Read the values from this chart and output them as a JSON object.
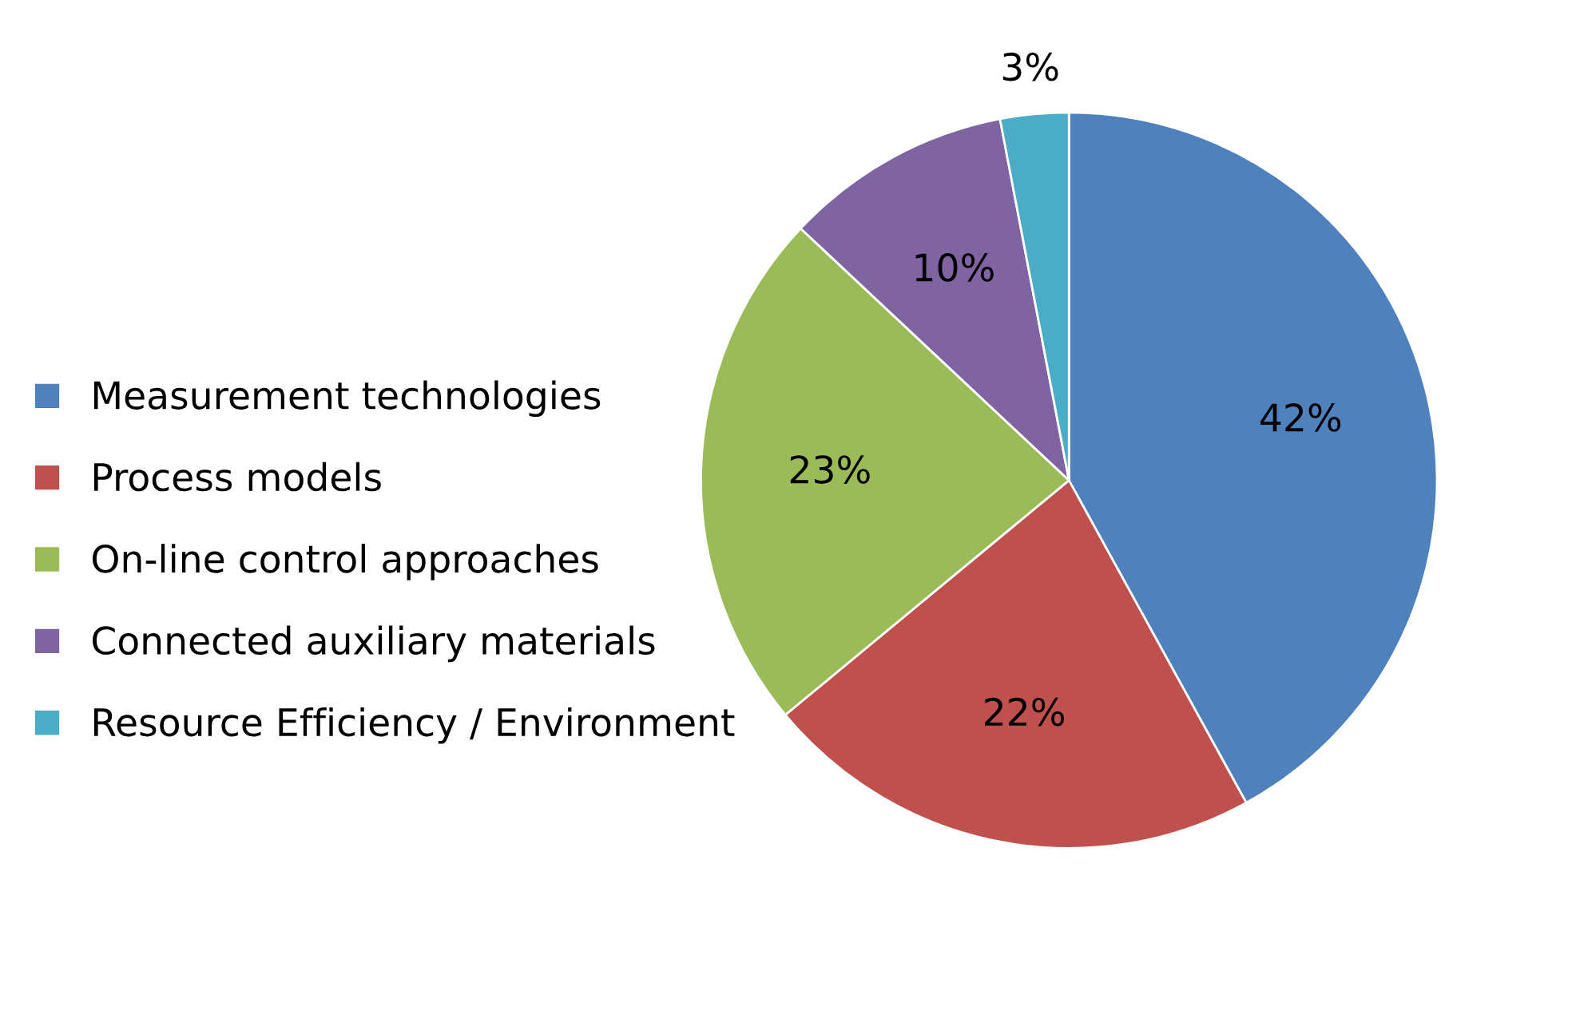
{
  "chart_data": {
    "type": "pie",
    "categories": [
      "Measurement technologies",
      "Process models",
      "On-line control approaches",
      "Connected auxiliary materials",
      "Resource Efficiency / Environment"
    ],
    "values": [
      42,
      22,
      23,
      10,
      3
    ],
    "value_labels": [
      "42%",
      "22%",
      "23%",
      "10%",
      "3%"
    ],
    "colors": [
      "#4f81bd",
      "#c0504d",
      "#9bbb59",
      "#8064a2",
      "#4bacc6"
    ],
    "legend": "left"
  }
}
